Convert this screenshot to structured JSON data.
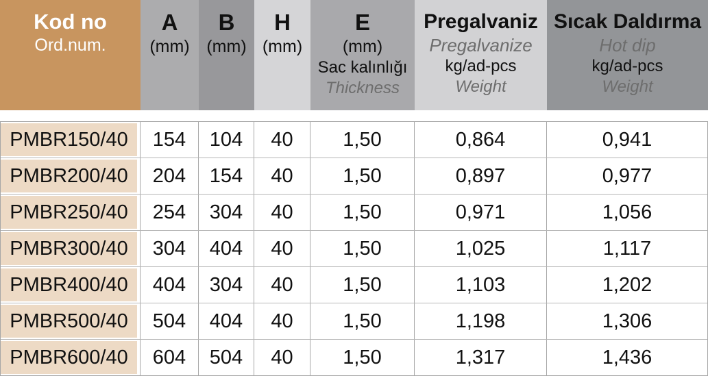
{
  "colors": {
    "header_tan": "#C8955F",
    "row_label_tan": "#EDDAC5",
    "gray_medium": "#ACACAE",
    "gray_dark": "#98989B",
    "gray_light": "#D5D5D7",
    "subtext_gray": "#6D6D6D",
    "grid_border": "#A6A6A6",
    "text_black": "#111111",
    "text_white": "#FFFFFF"
  },
  "header": {
    "kod": {
      "title": "Kod no",
      "subtitle": "Ord.num."
    },
    "a": {
      "title": "A",
      "unit": "(mm)"
    },
    "b": {
      "title": "B",
      "unit": "(mm)"
    },
    "h": {
      "title": "H",
      "unit": "(mm)"
    },
    "e": {
      "title": "E",
      "unit": "(mm)",
      "line3": "Sac kalınlığı",
      "line4": "Thickness"
    },
    "pre": {
      "title": "Pregalvaniz",
      "alt": "Pregalvanize",
      "unit": "kg/ad-pcs",
      "weight": "Weight"
    },
    "hot": {
      "title": "Sıcak Daldırma",
      "alt": "Hot dip",
      "unit": "kg/ad-pcs",
      "weight": "Weight"
    }
  },
  "rows": [
    {
      "code": "PMBR150/40",
      "a": "154",
      "b": "104",
      "h": "40",
      "e": "1,50",
      "pre": "0,864",
      "hot": "0,941"
    },
    {
      "code": "PMBR200/40",
      "a": "204",
      "b": "154",
      "h": "40",
      "e": "1,50",
      "pre": "0,897",
      "hot": "0,977"
    },
    {
      "code": "PMBR250/40",
      "a": "254",
      "b": "304",
      "h": "40",
      "e": "1,50",
      "pre": "0,971",
      "hot": "1,056"
    },
    {
      "code": "PMBR300/40",
      "a": "304",
      "b": "404",
      "h": "40",
      "e": "1,50",
      "pre": "1,025",
      "hot": "1,117"
    },
    {
      "code": "PMBR400/40",
      "a": "404",
      "b": "304",
      "h": "40",
      "e": "1,50",
      "pre": "1,103",
      "hot": "1,202"
    },
    {
      "code": "PMBR500/40",
      "a": "504",
      "b": "404",
      "h": "40",
      "e": "1,50",
      "pre": "1,198",
      "hot": "1,306"
    },
    {
      "code": "PMBR600/40",
      "a": "604",
      "b": "504",
      "h": "40",
      "e": "1,50",
      "pre": "1,317",
      "hot": "1,436"
    }
  ]
}
